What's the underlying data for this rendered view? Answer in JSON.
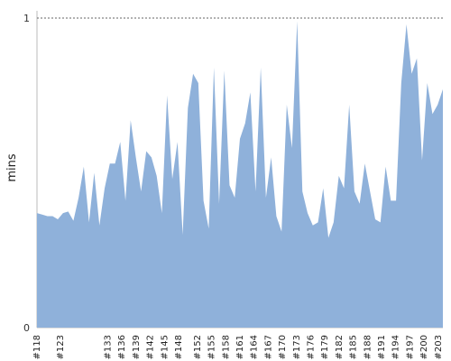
{
  "chart_data": {
    "type": "area",
    "title": "",
    "xlabel": "",
    "ylabel": "mins",
    "ylim": [
      0,
      1
    ],
    "y_ticks": [
      "0",
      "1"
    ],
    "grid": {
      "horizontal_at_max": true,
      "style": "dotted"
    },
    "legend": "none",
    "x_start": 118,
    "x_end": 204,
    "x_tick_labels": [
      "#118",
      "#123",
      "#133",
      "#136",
      "#139",
      "#142",
      "#145",
      "#148",
      "#152",
      "#155",
      "#158",
      "#161",
      "#164",
      "#167",
      "#170",
      "#173",
      "#176",
      "#179",
      "#182",
      "#185",
      "#188",
      "#191",
      "#194",
      "#197",
      "#200",
      "#203"
    ],
    "series": [
      {
        "values": [
          0.37,
          0.365,
          0.36,
          0.36,
          0.35,
          0.37,
          0.375,
          0.345,
          0.42,
          0.52,
          0.34,
          0.5,
          0.33,
          0.45,
          0.53,
          0.53,
          0.6,
          0.41,
          0.67,
          0.55,
          0.44,
          0.57,
          0.55,
          0.49,
          0.37,
          0.75,
          0.48,
          0.6,
          0.3,
          0.71,
          0.82,
          0.79,
          0.41,
          0.32,
          0.84,
          0.4,
          0.83,
          0.46,
          0.42,
          0.61,
          0.66,
          0.76,
          0.44,
          0.84,
          0.42,
          0.55,
          0.36,
          0.31,
          0.72,
          0.58,
          0.99,
          0.44,
          0.37,
          0.33,
          0.34,
          0.45,
          0.29,
          0.34,
          0.49,
          0.45,
          0.72,
          0.44,
          0.4,
          0.53,
          0.44,
          0.35,
          0.34,
          0.52,
          0.41,
          0.41,
          0.79,
          0.98,
          0.82,
          0.87,
          0.54,
          0.79,
          0.69,
          0.72,
          0.77
        ],
        "color": "#8fb1da"
      }
    ]
  }
}
